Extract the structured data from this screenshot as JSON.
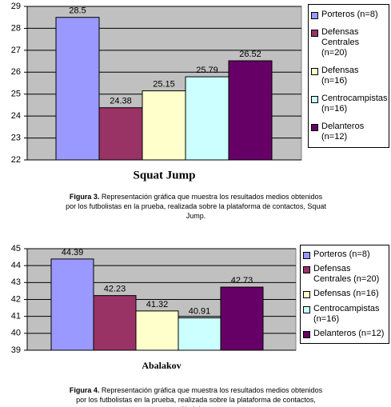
{
  "chart_data": [
    {
      "type": "bar",
      "title": "Squat Jump",
      "caption": {
        "label": "Figura 3.",
        "text": "Representación gráfica que muestra los resultados medios obtenidos por los futbolistas en la prueba, realizada sobre la plataforma de contactos, Squat Jump."
      },
      "categories": [
        null
      ],
      "series": [
        {
          "name": "Porteros (n=8)",
          "color": "#9999ff",
          "values": [
            28.5
          ]
        },
        {
          "name": "Defensas Centrales (n=20)",
          "color": "#993366",
          "values": [
            24.38
          ]
        },
        {
          "name": "Defensas (n=16)",
          "color": "#ffffcc",
          "values": [
            25.15
          ]
        },
        {
          "name": "Centrocampistas (n=16)",
          "color": "#ccffff",
          "values": [
            25.79
          ]
        },
        {
          "name": "Delanteros (n=12)",
          "color": "#660066",
          "values": [
            26.52
          ]
        }
      ],
      "ylim": [
        22,
        29
      ],
      "yticks": [
        22,
        23,
        24,
        25,
        26,
        27,
        28,
        29
      ],
      "grid": true,
      "legend": "right"
    },
    {
      "type": "bar",
      "title": "Abalakov",
      "caption": {
        "label": "Figura 4.",
        "text": "Representación gráfica que muestra los resultados medios obtenidos por los futbolistas en la prueba, realizada sobre la plataforma de contactos, Abalakov."
      },
      "categories": [
        null
      ],
      "series": [
        {
          "name": "Porteros (n=8)",
          "color": "#9999ff",
          "values": [
            44.39
          ]
        },
        {
          "name": "Defensas Centrales (n=20)",
          "color": "#993366",
          "values": [
            42.23
          ]
        },
        {
          "name": "Defensas (n=16)",
          "color": "#ffffcc",
          "values": [
            41.32
          ]
        },
        {
          "name": "Centrocampistas (n=16)",
          "color": "#ccffff",
          "values": [
            40.91
          ]
        },
        {
          "name": "Delanteros (n=12)",
          "color": "#660066",
          "values": [
            42.73
          ]
        }
      ],
      "ylim": [
        39,
        45
      ],
      "yticks": [
        39,
        40,
        41,
        42,
        43,
        44,
        45
      ],
      "grid": true,
      "legend": "right"
    }
  ]
}
